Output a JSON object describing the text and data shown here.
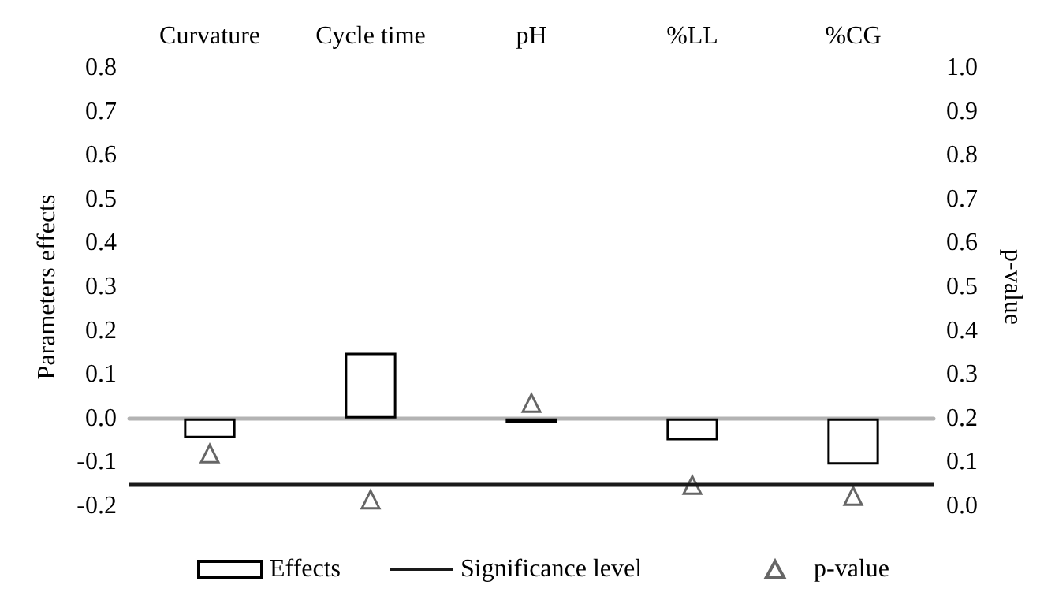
{
  "chart_data": {
    "type": "bar",
    "categories": [
      "Curvature",
      "Cycle time",
      "pH",
      "%LL",
      "%CG"
    ],
    "series": [
      {
        "name": "Effects",
        "color": "#000000",
        "values": [
          -0.045,
          0.15,
          -0.01,
          -0.05,
          -0.105
        ]
      },
      {
        "name": "p-value",
        "type": "scatter",
        "axis": "y2",
        "color": "#404040",
        "values": [
          0.12,
          0.015,
          0.235,
          0.048,
          0.023
        ]
      }
    ],
    "ylabel": "Parameters effects",
    "y2label": "p-value",
    "ylim": [
      -0.2,
      0.8
    ],
    "yticks": [
      {
        "value": -0.2,
        "label": "-0.2"
      },
      {
        "value": -0.1,
        "label": "-0.1"
      },
      {
        "value": 0,
        "label": "0.0"
      },
      {
        "value": 0.1,
        "label": "0.1"
      },
      {
        "value": 0.2,
        "label": "0.2"
      },
      {
        "value": 0.3,
        "label": "0.3"
      },
      {
        "value": 0.4,
        "label": "0.4"
      },
      {
        "value": 0.5,
        "label": "0.5"
      },
      {
        "value": 0.6,
        "label": "0.6"
      },
      {
        "value": 0.7,
        "label": "0.7"
      },
      {
        "value": 0.8,
        "label": "0.8"
      }
    ],
    "y2lim": [
      0,
      1
    ],
    "y2ticks": [
      {
        "value": 0,
        "label": "0.0"
      },
      {
        "value": 0.1,
        "label": "0.1"
      },
      {
        "value": 0.2,
        "label": "0.2"
      },
      {
        "value": 0.3,
        "label": "0.3"
      },
      {
        "value": 0.4,
        "label": "0.4"
      },
      {
        "value": 0.5,
        "label": "0.5"
      },
      {
        "value": 0.6,
        "label": "0.6"
      },
      {
        "value": 0.7,
        "label": "0.7"
      },
      {
        "value": 0.8,
        "label": "0.8"
      },
      {
        "value": 0.9,
        "label": "0.9"
      },
      {
        "value": 1,
        "label": "1.0"
      }
    ],
    "ref_lines": [
      {
        "axis": "y2",
        "value": 0.05,
        "label": "Significance level",
        "color": "#1a1a1a"
      }
    ],
    "marker": "triangle",
    "legend": "bottom"
  }
}
